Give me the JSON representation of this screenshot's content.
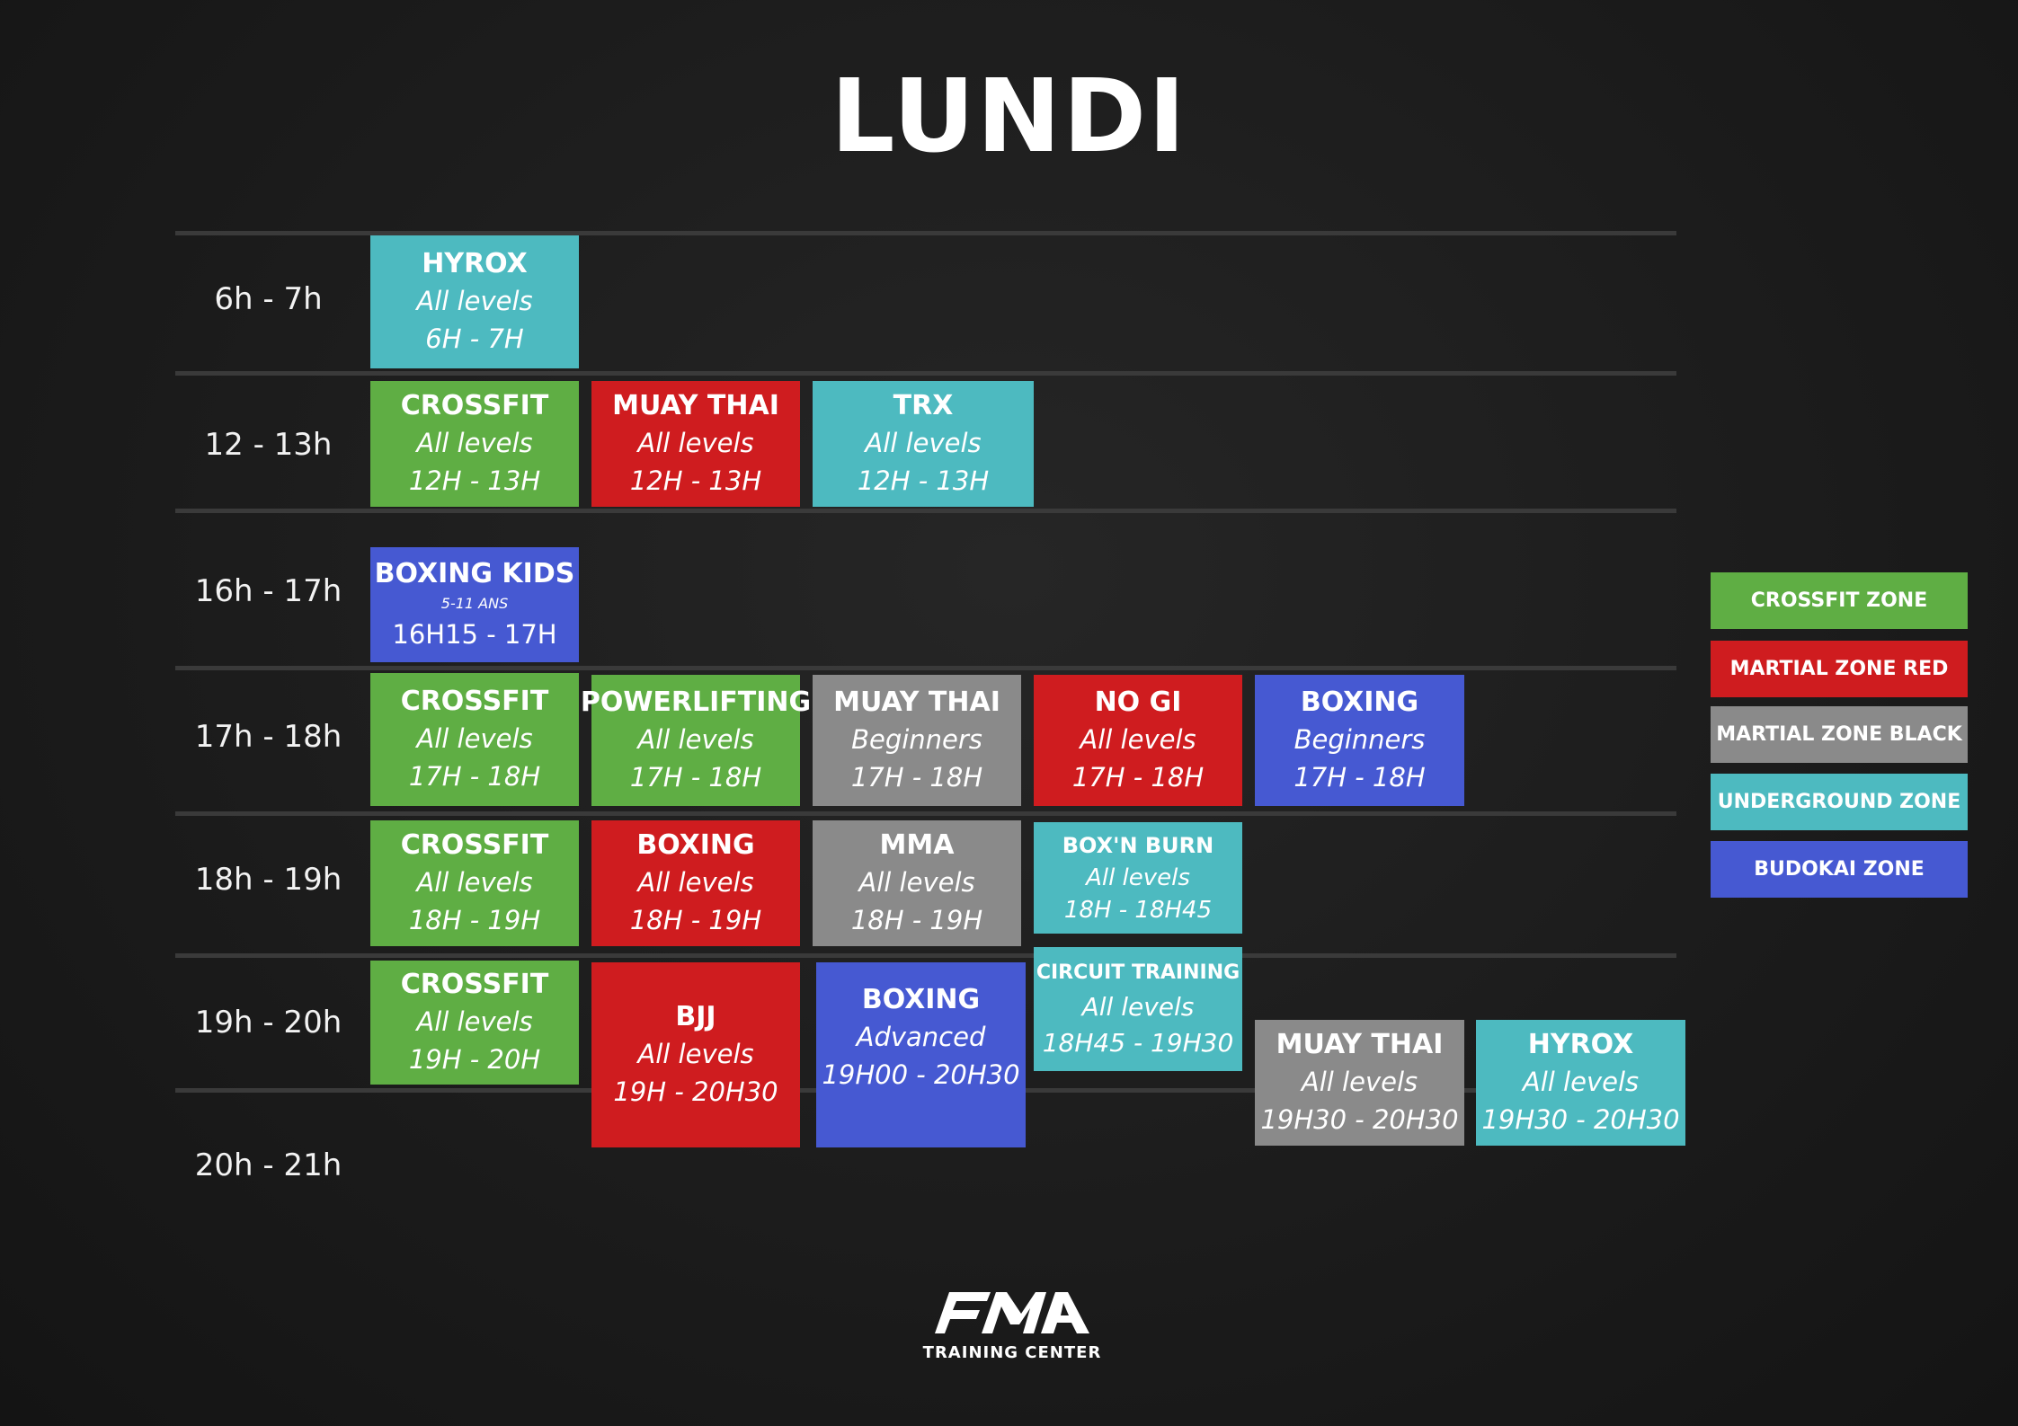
{
  "title": "LUNDI",
  "colors": {
    "crossfit_zone": "#5fae44",
    "martial_zone_red": "#cf1c1f",
    "martial_zone_black": "#8a8a8a",
    "underground_zone": "#4dbac0",
    "budokai_zone": "#4659d2"
  },
  "time_slots": [
    "6h - 7h",
    "12 - 13h",
    "16h - 17h",
    "17h - 18h",
    "18h - 19h",
    "19h - 20h",
    "20h - 21h"
  ],
  "classes": [
    {
      "name": "HYROX",
      "level": "All levels",
      "time": "6H - 7H",
      "zone": "underground_zone"
    },
    {
      "name": "CROSSFIT",
      "level": "All levels",
      "time": "12H - 13H",
      "zone": "crossfit_zone"
    },
    {
      "name": "MUAY THAI",
      "level": "All levels",
      "time": "12H - 13H",
      "zone": "martial_zone_red"
    },
    {
      "name": "TRX",
      "level": "All levels",
      "time": "12H - 13H",
      "zone": "underground_zone"
    },
    {
      "name": "BOXING KIDS",
      "level": "5-11 ANS",
      "time": "16H15 - 17H",
      "zone": "budokai_zone"
    },
    {
      "name": "CROSSFIT",
      "level": "All levels",
      "time": "17H - 18H",
      "zone": "crossfit_zone"
    },
    {
      "name": "POWERLIFTING",
      "level": "All levels",
      "time": "17H - 18H",
      "zone": "crossfit_zone"
    },
    {
      "name": "MUAY THAI",
      "level": "Beginners",
      "time": "17H - 18H",
      "zone": "martial_zone_black"
    },
    {
      "name": "NO GI",
      "level": "All levels",
      "time": "17H - 18H",
      "zone": "martial_zone_red"
    },
    {
      "name": "BOXING",
      "level": "Beginners",
      "time": "17H - 18H",
      "zone": "budokai_zone"
    },
    {
      "name": "CROSSFIT",
      "level": "All levels",
      "time": "18H - 19H",
      "zone": "crossfit_zone"
    },
    {
      "name": "BOXING",
      "level": "All levels",
      "time": "18H - 19H",
      "zone": "martial_zone_red"
    },
    {
      "name": "MMA",
      "level": "All levels",
      "time": "18H - 19H",
      "zone": "martial_zone_black"
    },
    {
      "name": "BOX'N BURN",
      "level": "All levels",
      "time": "18H - 18H45",
      "zone": "underground_zone"
    },
    {
      "name": "CROSSFIT",
      "level": "All levels",
      "time": "19H - 20H",
      "zone": "crossfit_zone"
    },
    {
      "name": "BJJ",
      "level": "All levels",
      "time": "19H - 20H30",
      "zone": "martial_zone_red"
    },
    {
      "name": "BOXING",
      "level": "Advanced",
      "time": "19H00 - 20H30",
      "zone": "budokai_zone"
    },
    {
      "name": "CIRCUIT TRAINING",
      "level": "All levels",
      "time": "18H45 - 19H30",
      "zone": "underground_zone"
    },
    {
      "name": "MUAY THAI",
      "level": "All levels",
      "time": "19H30 - 20H30",
      "zone": "martial_zone_black"
    },
    {
      "name": "HYROX",
      "level": "All levels",
      "time": "19H30 - 20H30",
      "zone": "underground_zone"
    }
  ],
  "legend": [
    {
      "label": "CROSSFIT ZONE",
      "zone": "crossfit_zone"
    },
    {
      "label": "MARTIAL ZONE RED",
      "zone": "martial_zone_red"
    },
    {
      "label": "MARTIAL ZONE BLACK",
      "zone": "martial_zone_black"
    },
    {
      "label": "UNDERGROUND ZONE",
      "zone": "underground_zone"
    },
    {
      "label": "BUDOKAI ZONE",
      "zone": "budokai_zone"
    }
  ],
  "logo": {
    "mark": "FMA",
    "subtitle": "TRAINING CENTER"
  }
}
